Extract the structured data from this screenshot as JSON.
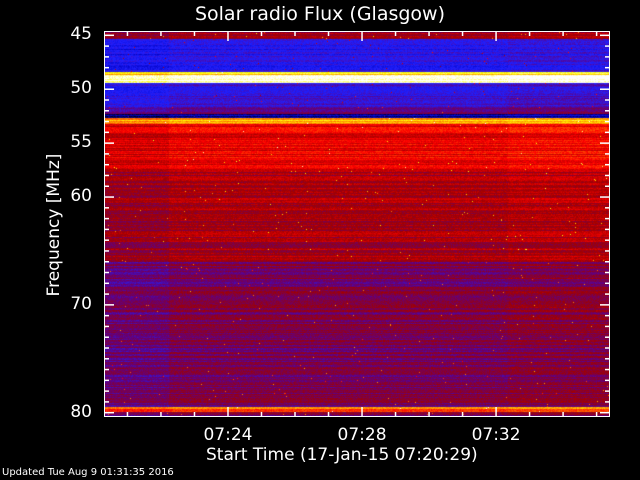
{
  "chart_data": {
    "type": "heatmap",
    "title": "Solar radio Flux (Glasgow)",
    "xlabel": "Start Time (17-Jan-15 07:20:29)",
    "ylabel": "Frequency [MHz]",
    "x_ticks": [
      "07:24",
      "07:28",
      "07:32"
    ],
    "x_tick_minutes": [
      24,
      28,
      32
    ],
    "xlim_minutes": [
      20.3,
      35.4
    ],
    "y_ticks": [
      45,
      50,
      55,
      60,
      70,
      80
    ],
    "ylim": [
      44.6,
      80.4
    ],
    "y_inverted": true,
    "colormap": [
      "#000000",
      "#0000c0",
      "#2020ff",
      "#600080",
      "#a00000",
      "#ff0000",
      "#ff8000",
      "#ffff00",
      "#ffffff"
    ],
    "bands": [
      {
        "from": 44.6,
        "to": 45.2,
        "level": 0.5
      },
      {
        "from": 45.2,
        "to": 48.3,
        "level": 0.25
      },
      {
        "from": 48.3,
        "to": 48.6,
        "level": 0.85
      },
      {
        "from": 48.6,
        "to": 49.3,
        "level": 1.0
      },
      {
        "from": 49.3,
        "to": 51.5,
        "level": 0.28
      },
      {
        "from": 51.5,
        "to": 52.2,
        "level": 0.38
      },
      {
        "from": 52.2,
        "to": 52.6,
        "level": 0.12
      },
      {
        "from": 52.6,
        "to": 53.1,
        "level": 0.8
      },
      {
        "from": 53.1,
        "to": 57.5,
        "level": 0.6
      },
      {
        "from": 57.5,
        "to": 66.0,
        "level": 0.5
      },
      {
        "from": 66.0,
        "to": 79.5,
        "level": 0.42
      },
      {
        "from": 79.5,
        "to": 80.0,
        "level": 0.72
      },
      {
        "from": 80.0,
        "to": 80.4,
        "level": 0.4
      }
    ],
    "segment_breaks_minutes": [
      22.2,
      32.3
    ]
  },
  "footer": {
    "updated": "Updated Tue Aug  9 01:31:35 2016"
  }
}
